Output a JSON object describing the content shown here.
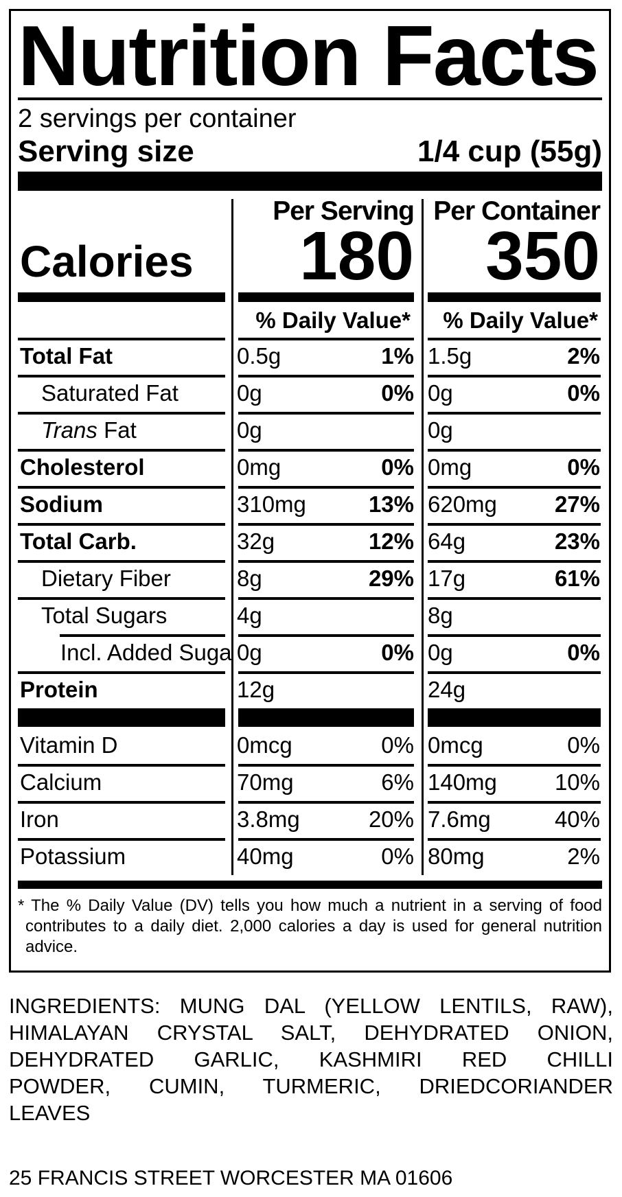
{
  "colors": {
    "ink": "#000000",
    "paper": "#ffffff"
  },
  "label": {
    "title": "Nutrition Facts",
    "servings_per_container": "2 servings per container",
    "serving_size_label": "Serving size",
    "serving_size_value": "1/4 cup (55g)",
    "calories_label": "Calories",
    "serving_col": {
      "header": "Per Serving",
      "calories": "180",
      "dv_header": "% Daily Value*"
    },
    "container_col": {
      "header": "Per Container",
      "calories": "350",
      "dv_header": "% Daily Value*"
    },
    "rows": [
      {
        "label": "Total Fat",
        "serving": {
          "amount": "0.5g",
          "dv": "1%"
        },
        "container": {
          "amount": "1.5g",
          "dv": "2%"
        }
      },
      {
        "label": "Saturated Fat",
        "serving": {
          "amount": "0g",
          "dv": "0%"
        },
        "container": {
          "amount": "0g",
          "dv": "0%"
        }
      },
      {
        "label_italic": "Trans",
        "label": " Fat",
        "serving": {
          "amount": "0g",
          "dv": ""
        },
        "container": {
          "amount": "0g",
          "dv": ""
        }
      },
      {
        "label": "Cholesterol",
        "serving": {
          "amount": "0mg",
          "dv": "0%"
        },
        "container": {
          "amount": "0mg",
          "dv": "0%"
        }
      },
      {
        "label": "Sodium",
        "serving": {
          "amount": "310mg",
          "dv": "13%"
        },
        "container": {
          "amount": "620mg",
          "dv": "27%"
        }
      },
      {
        "label": "Total Carb.",
        "serving": {
          "amount": "32g",
          "dv": "12%"
        },
        "container": {
          "amount": "64g",
          "dv": "23%"
        }
      },
      {
        "label": "Dietary Fiber",
        "serving": {
          "amount": "8g",
          "dv": "29%"
        },
        "container": {
          "amount": "17g",
          "dv": "61%"
        }
      },
      {
        "label": "Total Sugars",
        "serving": {
          "amount": "4g",
          "dv": ""
        },
        "container": {
          "amount": "8g",
          "dv": ""
        }
      },
      {
        "label": "Incl. Added Suga",
        "serving": {
          "amount": "0g",
          "dv": "0%"
        },
        "container": {
          "amount": "0g",
          "dv": "0%"
        }
      },
      {
        "label": "Protein",
        "serving": {
          "amount": "12g",
          "dv": ""
        },
        "container": {
          "amount": "24g",
          "dv": ""
        }
      }
    ],
    "micronutrients": [
      {
        "label": "Vitamin D",
        "serving": {
          "amount": "0mcg",
          "dv": "0%"
        },
        "container": {
          "amount": "0mcg",
          "dv": "0%"
        }
      },
      {
        "label": "Calcium",
        "serving": {
          "amount": "70mg",
          "dv": "6%"
        },
        "container": {
          "amount": "140mg",
          "dv": "10%"
        }
      },
      {
        "label": "Iron",
        "serving": {
          "amount": "3.8mg",
          "dv": "20%"
        },
        "container": {
          "amount": "7.6mg",
          "dv": "40%"
        }
      },
      {
        "label": "Potassium",
        "serving": {
          "amount": "40mg",
          "dv": "0%"
        },
        "container": {
          "amount": "80mg",
          "dv": "2%"
        }
      }
    ],
    "footnote_lines": [
      "* The % Daily Value (DV) tells you how much a nutrient in a serving of food",
      "contributes to a daily diet. 2,000 calories a day is used for general nutrition",
      "advice."
    ]
  },
  "ingredients_lines": [
    "INGREDIENTS: MUNG DAL (YELLOW LENTILS, RAW),",
    "HIMALAYAN CRYSTAL SALT, DEHYDRATED ONION,",
    "DEHYDRATED GARLIC, KASHMIRI RED CHILLI",
    "POWDER, CUMIN, TURMERIC, DRIEDCORIANDER",
    "LEAVES"
  ],
  "address": "25 FRANCIS STREET WORCESTER MA 01606"
}
